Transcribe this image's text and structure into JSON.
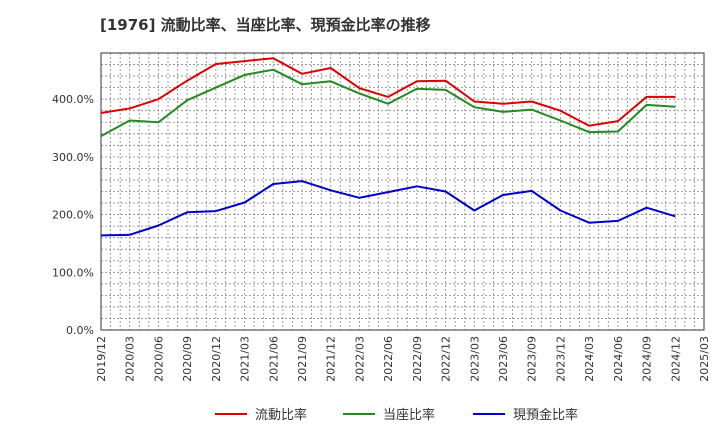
{
  "chart_data": {
    "type": "line",
    "title": "[1976]  流動比率、当座比率、現預金比率の推移",
    "xlabel": "",
    "ylabel": "",
    "ylim": [
      0,
      480
    ],
    "y_ticks": [
      0,
      100,
      200,
      300,
      400
    ],
    "y_tick_labels": [
      "0.0%",
      "100.0%",
      "200.0%",
      "300.0%",
      "400.0%"
    ],
    "x_tick_labels": [
      "2019/12",
      "2020/03",
      "2020/06",
      "2020/09",
      "2020/12",
      "2021/03",
      "2021/06",
      "2021/09",
      "2021/12",
      "2022/03",
      "2022/06",
      "2022/09",
      "2022/12",
      "2023/03",
      "2023/06",
      "2023/09",
      "2023/12",
      "2024/03",
      "2024/06",
      "2024/09",
      "2024/12",
      "2025/03"
    ],
    "categories": [
      "2019/12",
      "2020/03",
      "2020/06",
      "2020/09",
      "2020/12",
      "2021/03",
      "2021/06",
      "2021/09",
      "2021/12",
      "2022/03",
      "2022/06",
      "2022/09",
      "2022/12",
      "2023/03",
      "2023/06",
      "2023/09",
      "2023/12",
      "2024/03",
      "2024/06",
      "2024/09",
      "2024/12"
    ],
    "grid": true,
    "legend_position": "bottom",
    "series": [
      {
        "name": "流動比率",
        "color": "#dd0000",
        "values": [
          376,
          384,
          400,
          432,
          461,
          466,
          471,
          444,
          454,
          419,
          404,
          431,
          432,
          396,
          392,
          396,
          380,
          354,
          362,
          404,
          404
        ]
      },
      {
        "name": "当座比率",
        "color": "#228b22",
        "values": [
          336,
          363,
          360,
          398,
          420,
          442,
          451,
          426,
          431,
          410,
          392,
          418,
          416,
          386,
          378,
          382,
          363,
          343,
          344,
          390,
          387
        ]
      },
      {
        "name": "現預金比率",
        "color": "#0000cc",
        "values": [
          164,
          165,
          181,
          204,
          206,
          221,
          253,
          258,
          242,
          229,
          239,
          249,
          240,
          207,
          234,
          241,
          207,
          186,
          189,
          212,
          197
        ]
      }
    ]
  }
}
